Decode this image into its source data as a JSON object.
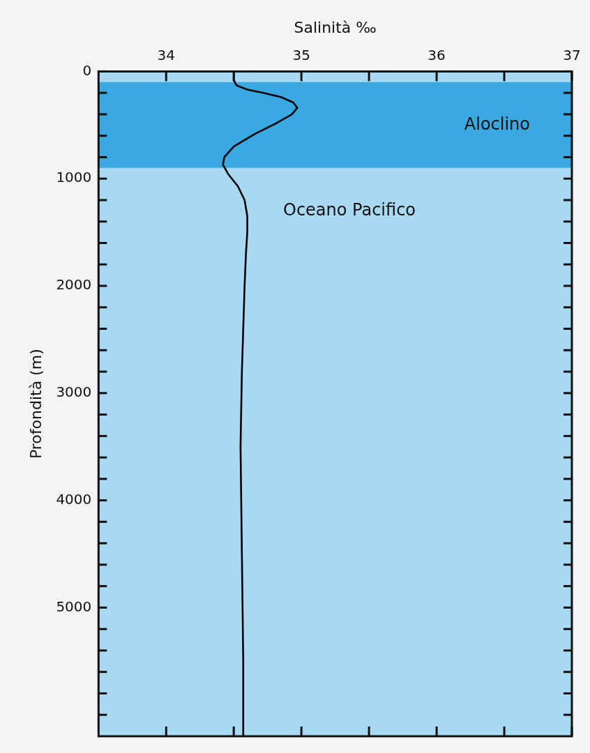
{
  "chart_data": {
    "type": "line",
    "xlabel": "Salinità ‰",
    "ylabel": "Profondità (m)",
    "series": [
      {
        "color": "#000000",
        "x": [
          34.5,
          34.5,
          34.52,
          34.6,
          34.72,
          34.85,
          34.94,
          34.97,
          34.93,
          34.82,
          34.66,
          34.5,
          34.43,
          34.42,
          34.46,
          34.53,
          34.58,
          34.6,
          34.6,
          34.59,
          34.58,
          34.56,
          34.55,
          34.56,
          34.57,
          34.57
        ],
        "values": [
          0,
          80,
          130,
          170,
          200,
          240,
          290,
          340,
          400,
          480,
          580,
          700,
          800,
          870,
          960,
          1070,
          1200,
          1350,
          1500,
          1700,
          2000,
          2800,
          3500,
          4500,
          5500,
          6200
        ]
      }
    ],
    "xlim": [
      33.5,
      37
    ],
    "xticks": [
      34,
      {
        "value": 34.5,
        "label": null
      },
      35,
      {
        "value": 35.5,
        "label": null
      },
      36,
      {
        "value": 36.5,
        "label": null
      },
      37
    ],
    "ylim": [
      6200,
      0
    ],
    "yticks": [
      0,
      {
        "value": 200,
        "label": null
      },
      {
        "value": 400,
        "label": null
      },
      {
        "value": 600,
        "label": null
      },
      {
        "value": 800,
        "label": null
      },
      1000,
      {
        "value": 1200,
        "label": null
      },
      {
        "value": 1400,
        "label": null
      },
      {
        "value": 1600,
        "label": null
      },
      {
        "value": 1800,
        "label": null
      },
      2000,
      {
        "value": 2200,
        "label": null
      },
      {
        "value": 2400,
        "label": null
      },
      {
        "value": 2600,
        "label": null
      },
      {
        "value": 2800,
        "label": null
      },
      3000,
      {
        "value": 3200,
        "label": null
      },
      {
        "value": 3400,
        "label": null
      },
      {
        "value": 3600,
        "label": null
      },
      {
        "value": 3800,
        "label": null
      },
      4000,
      {
        "value": 4200,
        "label": null
      },
      {
        "value": 4400,
        "label": null
      },
      {
        "value": 4600,
        "label": null
      },
      {
        "value": 4800,
        "label": null
      },
      5000,
      {
        "value": 5200,
        "label": null
      },
      {
        "value": 5400,
        "label": null
      },
      {
        "value": 5600,
        "label": null
      },
      {
        "value": 5800,
        "label": null
      },
      {
        "value": 6000,
        "label": null
      }
    ],
    "bands": [
      {
        "axis": "y",
        "from": 100,
        "to": 900,
        "label": "Aloclino",
        "color": "#3aa9e2"
      }
    ],
    "annotations": [
      "Oceano Pacifico"
    ],
    "marker": "none",
    "line_style": "solid",
    "legend": false
  }
}
